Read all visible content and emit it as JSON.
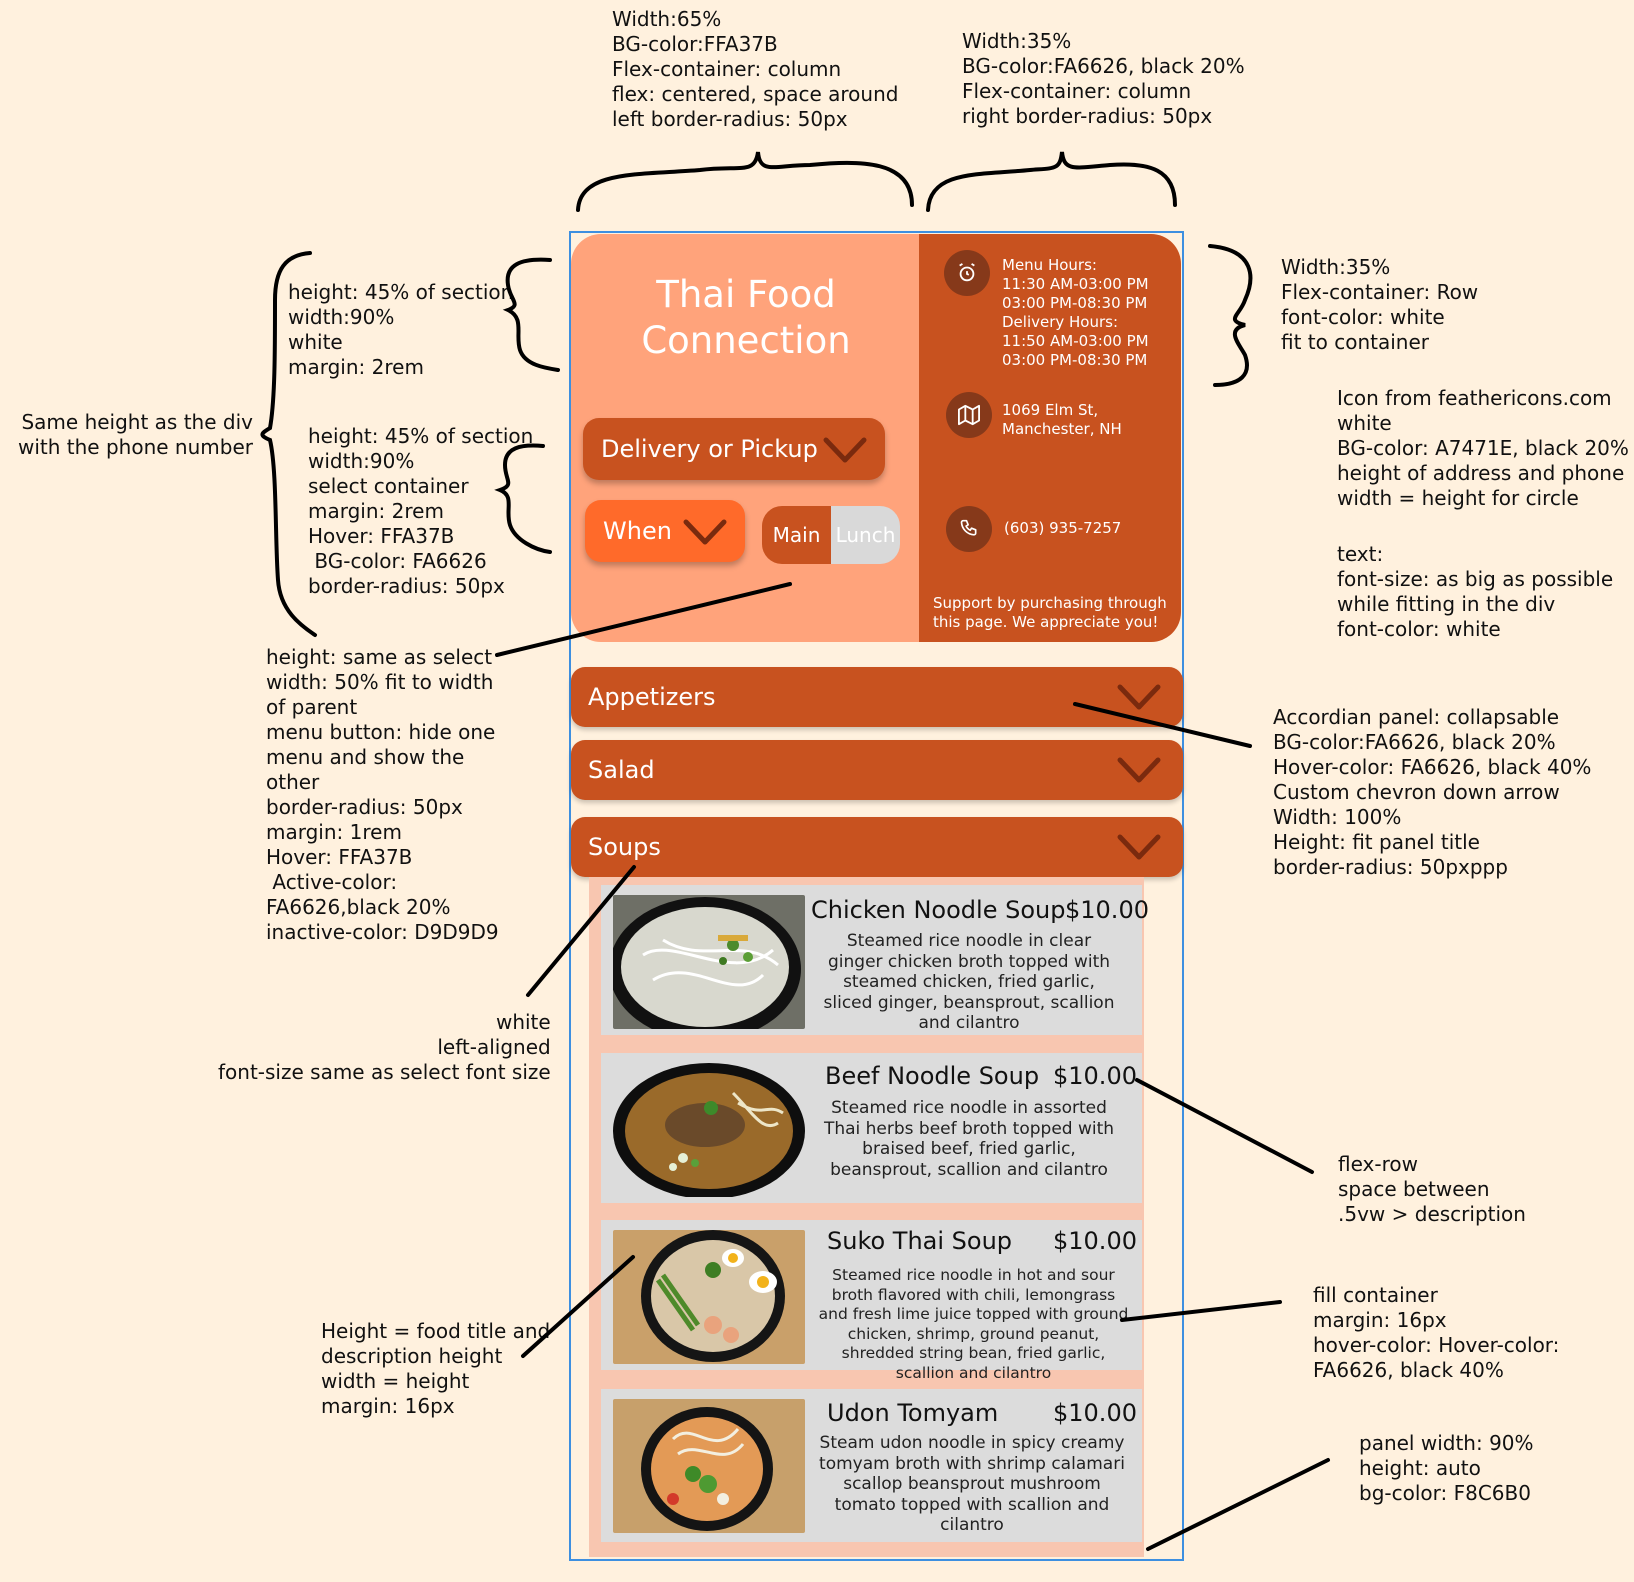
{
  "annotations": {
    "left_panel_spec": "Width:65%\nBG-color:FFA37B\nFlex-container: column\nflex: centered, space around\nleft border-radius: 50px",
    "right_panel_spec": "Width:35%\nBG-color:FA6626, black 20%\nFlex-container: column\nright border-radius: 50px",
    "info_rows_spec": "Width:35%\nFlex-container: Row\nfont-color: white\nfit to container",
    "icon_spec": "Icon from feathericons.com\nwhite\nBG-color: A7471E, black 20%\nheight of address and phone\nwidth = height for circle",
    "icon_text_spec": "text:\nfont-size: as big as possible\nwhile fitting in the div\nfont-color: white",
    "title_spec": "height: 45% of section\nwidth:90%\nwhite\nmargin: 2rem",
    "same_height_note": "Same height as the div\nwith the phone number",
    "select_spec": "height: 45% of section\nwidth:90%\nselect container\nmargin: 2rem\nHover: FFA37B\n BG-color: FA6626\nborder-radius: 50px",
    "toggle_spec": "height: same as select\nwidth: 50% fit to width\nof parent\nmenu button: hide one\nmenu and show the\nother\nborder-radius: 50px\nmargin: 1rem\nHover: FFA37B\n Active-color:\nFA6626,black 20%\ninactive-color: D9D9D9",
    "accordion_spec": "Accordian panel: collapsable\nBG-color:FA6626, black 20%\nHover-color: FA6626, black 40%\nCustom chevron down arrow\nWidth: 100%\nHeight: fit panel title\nborder-radius: 50pxppp",
    "accordion_text_spec": "white\nleft-aligned\nfont-size same as select font size",
    "card_row_spec": "flex-row\nspace between\n.5vw > description",
    "card_fill_spec": "fill container\nmargin: 16px\nhover-color: Hover-color:\nFA6626, black 40%",
    "image_spec": "Height = food title and\ndescription height\nwidth = height\nmargin: 16px",
    "panel_spec": "panel width: 90%\nheight: auto\nbg-color: F8C6B0"
  },
  "app": {
    "title": "Thai Food Connection",
    "delivery_select": "Delivery or Pickup",
    "when_select": "When",
    "toggle": {
      "active": "Main",
      "inactive": "Lunch"
    },
    "hours": "Menu Hours:\n11:30 AM-03:00 PM\n03:00 PM-08:30 PM\nDelivery Hours:\n11:50 AM-03:00 PM\n03:00 PM-08:30 PM",
    "address": "1069 Elm St,\nManchester, NH",
    "phone": "(603) 935-7257",
    "support": "Support by purchasing through\nthis page. We appreciate you!",
    "accordions": [
      "Appetizers",
      "Salad",
      "Soups"
    ],
    "menu": [
      {
        "title": "Chicken Noodle Soup",
        "price": "$10.00",
        "desc": "Steamed rice noodle in clear ginger chicken broth topped with steamed chicken, fried garlic, sliced ginger, beansprout, scallion and cilantro"
      },
      {
        "title": "Beef Noodle Soup",
        "price": "$10.00",
        "desc": "Steamed rice noodle in assorted Thai herbs beef broth topped with braised beef, fried garlic, beansprout, scallion and cilantro"
      },
      {
        "title": "Suko Thai Soup",
        "price": "$10.00",
        "desc": "Steamed rice noodle in hot and sour broth flavored with chili, lemongrass and fresh lime juice topped with ground chicken, shrimp, ground peanut, shredded string bean, fried garlic, scallion and cilantro"
      },
      {
        "title": "Udon Tomyam",
        "price": "$10.00",
        "desc": "Steam udon noodle in spicy creamy tomyam broth with shrimp calamari scallop beansprout mushroom tomato topped with scallion and cilantro"
      }
    ]
  },
  "icons": {
    "hours": "alarm-clock-icon",
    "address": "map-icon",
    "phone": "phone-icon",
    "chevron": "chevron-down-icon"
  },
  "colors": {
    "peach": "#FFA37B",
    "rust": "#C8521F",
    "orange": "#FF6A2A",
    "panel": "#F8C6B0",
    "inactive": "#D9D9D9"
  }
}
